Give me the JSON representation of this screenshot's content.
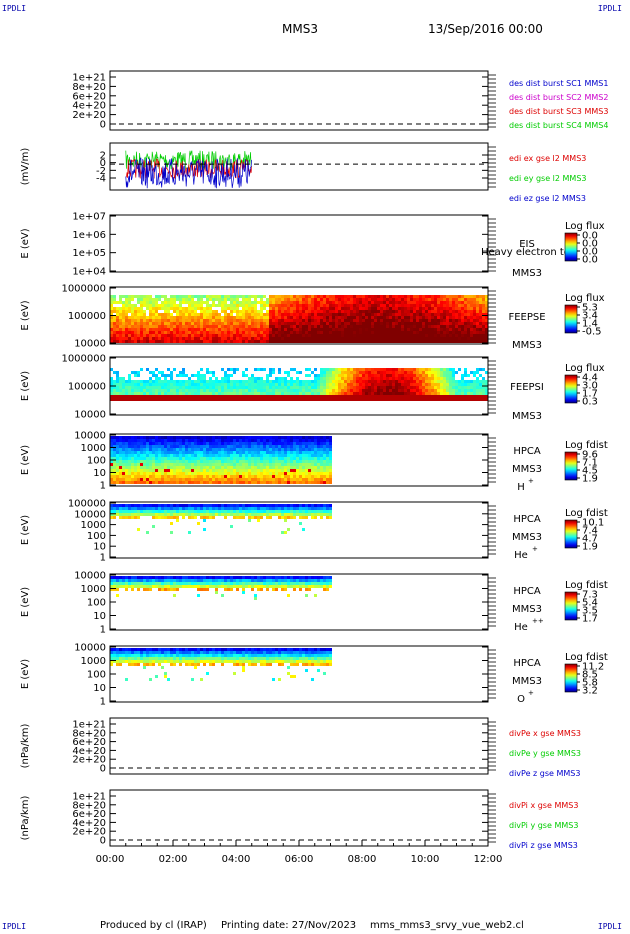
{
  "corners": {
    "tl": "IPDLI",
    "tr": "IPDLI",
    "bl": "IPDLI",
    "br": "IPDLI"
  },
  "header": {
    "spacecraft": "MMS3",
    "date": "13/Sep/2016 00:00"
  },
  "footer": {
    "producer": "Produced by cl (IRAP)",
    "printing": "Printing date: 27/Nov/2023",
    "file": "mms_mms3_srvy_vue_web2.cl"
  },
  "colors": {
    "red": "#dd0000",
    "green": "#00cc00",
    "blue": "#0000cc",
    "magenta": "#cc00cc"
  },
  "chart_data": {
    "x_axis": {
      "ticks": [
        "00:00",
        "02:00",
        "04:00",
        "06:00",
        "08:00",
        "10:00",
        "12:00"
      ],
      "range_hours": [
        0,
        12
      ]
    },
    "panels": [
      {
        "id": "p1",
        "type": "line",
        "ylabel": "",
        "yticks": [
          "1e+21",
          "8e+20",
          "6e+20",
          "4e+20",
          "2e+20",
          "0"
        ],
        "zero_line": true,
        "legend": [
          {
            "text": "des dist burst SC1 MMS1",
            "color": "#0000cc"
          },
          {
            "text": "des dist burst SC2 MMS2",
            "color": "#cc00cc"
          },
          {
            "text": "des dist burst SC3 MMS3",
            "color": "#dd0000"
          },
          {
            "text": "des dist burst SC4 MMS4",
            "color": "#00cc00"
          }
        ]
      },
      {
        "id": "p2",
        "type": "line",
        "ylabel": "(mV/m)",
        "yticks": [
          "2",
          "0",
          "-2",
          "-4"
        ],
        "zero_line": true,
        "data_span_hours": [
          0.5,
          4.5
        ],
        "legend": [
          {
            "text": "edi ex gse l2 MMS3",
            "color": "#dd0000"
          },
          {
            "text": "edi ey gse l2 MMS3",
            "color": "#00cc00"
          },
          {
            "text": "edi ez gse l2 MMS3",
            "color": "#0000cc"
          }
        ]
      },
      {
        "id": "p3",
        "type": "heatmap",
        "ylabel": "E (eV)",
        "yticks": [
          "1e+07",
          "1e+06",
          "1e+05",
          "1e+04"
        ],
        "instrument": "EIS",
        "sc": "MMS3",
        "overlay": "Heavy electron to",
        "colorbar": {
          "title": "Log flux",
          "ticks": [
            "0.0",
            "0.0",
            "0.0",
            "0.0"
          ]
        }
      },
      {
        "id": "p4",
        "type": "heatmap",
        "ylabel": "E (eV)",
        "yticks": [
          "1000000",
          "100000",
          "10000"
        ],
        "instrument": "FEEPSE",
        "sc": "MMS3",
        "colorbar": {
          "title": "Log flux",
          "ticks": [
            "5.3",
            "3.4",
            "1.4",
            "-0.5"
          ]
        }
      },
      {
        "id": "p5",
        "type": "heatmap",
        "ylabel": "E (eV)",
        "yticks": [
          "1000000",
          "100000",
          "10000"
        ],
        "instrument": "FEEPSI",
        "sc": "MMS3",
        "colorbar": {
          "title": "Log flux",
          "ticks": [
            "4.4",
            "3.0",
            "1.7",
            "0.3"
          ]
        }
      },
      {
        "id": "p6",
        "type": "heatmap",
        "ylabel": "E (eV)",
        "yticks": [
          "10000",
          "1000",
          "100",
          "10",
          "1"
        ],
        "instrument": "HPCA",
        "sc": "MMS3",
        "species": "H",
        "charge": "+",
        "data_span_hours": [
          0,
          7
        ],
        "colorbar": {
          "title": "Log fdist",
          "ticks": [
            "9.6",
            "7.1",
            "4.5",
            "1.9"
          ]
        }
      },
      {
        "id": "p7",
        "type": "heatmap",
        "ylabel": "E (eV)",
        "yticks": [
          "100000",
          "10000",
          "1000",
          "100",
          "10",
          "1"
        ],
        "instrument": "HPCA",
        "sc": "MMS3",
        "species": "He",
        "charge": "+",
        "data_span_hours": [
          0,
          7
        ],
        "colorbar": {
          "title": "Log fdist",
          "ticks": [
            "10.1",
            "7.4",
            "4.7",
            "1.9"
          ]
        }
      },
      {
        "id": "p8",
        "type": "heatmap",
        "ylabel": "E (eV)",
        "yticks": [
          "10000",
          "1000",
          "100",
          "10",
          "1"
        ],
        "instrument": "HPCA",
        "sc": "MMS3",
        "species": "He",
        "charge": "++",
        "data_span_hours": [
          0,
          7
        ],
        "colorbar": {
          "title": "Log fdist",
          "ticks": [
            "7.3",
            "5.4",
            "3.5",
            "1.7"
          ]
        }
      },
      {
        "id": "p9",
        "type": "heatmap",
        "ylabel": "E (eV)",
        "yticks": [
          "10000",
          "1000",
          "100",
          "10",
          "1"
        ],
        "instrument": "HPCA",
        "sc": "MMS3",
        "species": "O",
        "charge": "+",
        "data_span_hours": [
          0,
          7
        ],
        "colorbar": {
          "title": "Log fdist",
          "ticks": [
            "11.2",
            "8.5",
            "5.8",
            "3.2"
          ]
        }
      },
      {
        "id": "p10",
        "type": "line",
        "ylabel": "(nPa/km)",
        "yticks": [
          "1e+21",
          "8e+20",
          "6e+20",
          "4e+20",
          "2e+20",
          "0"
        ],
        "zero_line": true,
        "legend": [
          {
            "text": "divPe x gse MMS3",
            "color": "#dd0000"
          },
          {
            "text": "divPe y gse MMS3",
            "color": "#00cc00"
          },
          {
            "text": "divPe z gse MMS3",
            "color": "#0000cc"
          }
        ]
      },
      {
        "id": "p11",
        "type": "line",
        "ylabel": "(nPa/km)",
        "yticks": [
          "1e+21",
          "8e+20",
          "6e+20",
          "4e+20",
          "2e+20",
          "0"
        ],
        "zero_line": true,
        "legend": [
          {
            "text": "divPi x gse MMS3",
            "color": "#dd0000"
          },
          {
            "text": "divPi y gse MMS3",
            "color": "#00cc00"
          },
          {
            "text": "divPi z gse MMS3",
            "color": "#0000cc"
          }
        ]
      }
    ]
  }
}
